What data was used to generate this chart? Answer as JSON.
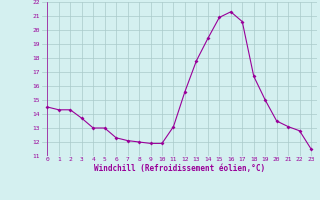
{
  "x": [
    0,
    1,
    2,
    3,
    4,
    5,
    6,
    7,
    8,
    9,
    10,
    11,
    12,
    13,
    14,
    15,
    16,
    17,
    18,
    19,
    20,
    21,
    22,
    23
  ],
  "y": [
    14.5,
    14.3,
    14.3,
    13.7,
    13.0,
    13.0,
    12.3,
    12.1,
    12.0,
    11.9,
    11.9,
    13.1,
    15.6,
    17.8,
    19.4,
    20.9,
    21.3,
    20.6,
    16.7,
    15.0,
    13.5,
    13.1,
    12.8,
    11.5
  ],
  "line_color": "#990099",
  "marker": "D",
  "marker_size": 2.0,
  "bg_color": "#d4f0f0",
  "grid_color": "#aacaca",
  "xlabel": "Windchill (Refroidissement éolien,°C)",
  "xlabel_color": "#990099",
  "tick_color": "#990099",
  "ylim": [
    11,
    22
  ],
  "xlim": [
    -0.5,
    23.5
  ],
  "yticks": [
    11,
    12,
    13,
    14,
    15,
    16,
    17,
    18,
    19,
    20,
    21,
    22
  ],
  "xticks": [
    0,
    1,
    2,
    3,
    4,
    5,
    6,
    7,
    8,
    9,
    10,
    11,
    12,
    13,
    14,
    15,
    16,
    17,
    18,
    19,
    20,
    21,
    22,
    23
  ]
}
